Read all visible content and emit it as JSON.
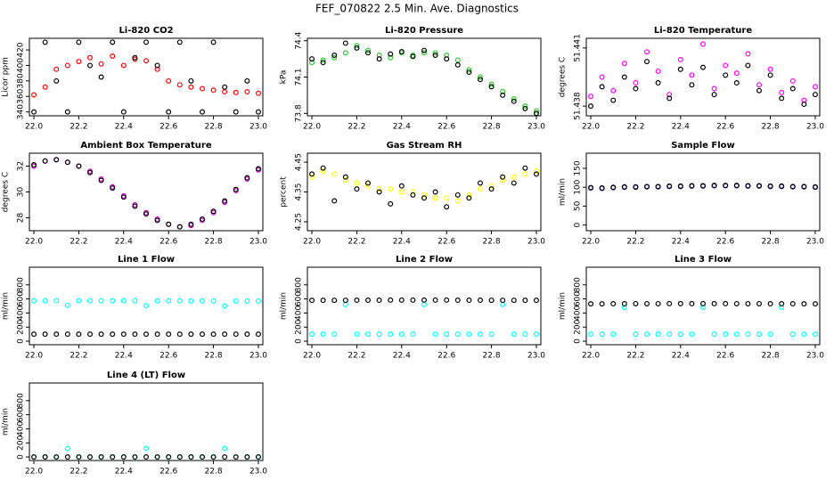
{
  "title": "FEF_070822  2.5 Min. Ave. Diagnostics",
  "chart_data": [
    {
      "type": "scatter",
      "title": "Li-820 CO2",
      "ylabel": "Licor ppm",
      "x": [
        22.0,
        22.05,
        22.1,
        22.15,
        22.2,
        22.25,
        22.3,
        22.35,
        22.4,
        22.45,
        22.5,
        22.55,
        22.6,
        22.65,
        22.7,
        22.75,
        22.8,
        22.85,
        22.9,
        22.95,
        23.0
      ],
      "xlim": [
        21.98,
        23.02
      ],
      "xticks": [
        {
          "value": 22,
          "label": "22.0"
        },
        22.2,
        22.4,
        22.6,
        22.8,
        {
          "value": 23,
          "label": "23.0"
        }
      ],
      "ylim": [
        335,
        435
      ],
      "yticks": [
        340,
        360,
        380,
        400,
        420
      ],
      "series": [
        {
          "color": "#ff0000",
          "values": [
            362,
            372,
            395,
            400,
            405,
            410,
            402,
            412,
            400,
            408,
            406,
            395,
            380,
            375,
            372,
            370,
            368,
            366,
            365,
            366,
            364
          ]
        },
        {
          "color": "#000000",
          "values": [
            340,
            430,
            380,
            340,
            430,
            400,
            385,
            430,
            340,
            410,
            430,
            400,
            340,
            430,
            380,
            340,
            430,
            372,
            340,
            380,
            340
          ]
        }
      ]
    },
    {
      "type": "scatter",
      "title": "Li-820 Pressure",
      "ylabel": "kPa",
      "x": [
        22.0,
        22.05,
        22.1,
        22.15,
        22.2,
        22.25,
        22.3,
        22.35,
        22.4,
        22.45,
        22.5,
        22.55,
        22.6,
        22.65,
        22.7,
        22.75,
        22.8,
        22.85,
        22.9,
        22.95,
        23.0
      ],
      "xlim": [
        21.98,
        23.02
      ],
      "xticks": [
        {
          "value": 22,
          "label": "22.0"
        },
        22.2,
        22.4,
        22.6,
        22.8,
        {
          "value": 23,
          "label": "23.0"
        }
      ],
      "ylim": [
        73.78,
        74.42
      ],
      "yticks": [
        73.8,
        74.1,
        74.4
      ],
      "series": [
        {
          "color": "#22cc22",
          "values": [
            74.22,
            74.24,
            74.26,
            74.3,
            74.36,
            74.32,
            74.28,
            74.26,
            74.3,
            74.28,
            74.3,
            74.3,
            74.28,
            74.24,
            74.16,
            74.1,
            74.04,
            73.98,
            73.92,
            73.86,
            73.82
          ]
        },
        {
          "color": "#000000",
          "values": [
            74.25,
            74.22,
            74.28,
            74.38,
            74.34,
            74.3,
            74.25,
            74.29,
            74.31,
            74.27,
            74.32,
            74.28,
            74.25,
            74.2,
            74.14,
            74.08,
            74.02,
            73.95,
            73.9,
            73.84,
            73.8
          ]
        }
      ]
    },
    {
      "type": "scatter",
      "title": "Li-820 Temperature",
      "ylabel": "degrees C",
      "x": [
        22.0,
        22.05,
        22.1,
        22.15,
        22.2,
        22.25,
        22.3,
        22.35,
        22.4,
        22.45,
        22.5,
        22.55,
        22.6,
        22.65,
        22.7,
        22.75,
        22.8,
        22.85,
        22.9,
        22.95,
        23.0
      ],
      "xlim": [
        21.98,
        23.02
      ],
      "xticks": [
        {
          "value": 22,
          "label": "22.0"
        },
        22.2,
        22.4,
        22.6,
        22.8,
        {
          "value": 23,
          "label": "23.0"
        }
      ],
      "ylim": [
        51.4375,
        51.4415
      ],
      "yticks": [
        51.438,
        51.441
      ],
      "series": [
        {
          "color": "#ff00ff",
          "values": [
            51.4385,
            51.4395,
            51.4388,
            51.4402,
            51.4392,
            51.4408,
            51.4398,
            51.4386,
            51.4404,
            51.4396,
            51.4412,
            51.4389,
            51.4401,
            51.4397,
            51.4407,
            51.4391,
            51.4399,
            51.4387,
            51.4393,
            51.4383,
            51.439
          ]
        },
        {
          "color": "#000000",
          "values": [
            51.438,
            51.439,
            51.4383,
            51.4395,
            51.4389,
            51.4403,
            51.4392,
            51.4384,
            51.4399,
            51.4391,
            51.44,
            51.4386,
            51.4396,
            51.4392,
            51.4401,
            51.4388,
            51.4396,
            51.4384,
            51.4389,
            51.4381,
            51.4386
          ]
        }
      ]
    },
    {
      "type": "scatter",
      "title": "Ambient Box Temperature",
      "ylabel": "degrees C",
      "x": [
        22.0,
        22.05,
        22.1,
        22.15,
        22.2,
        22.25,
        22.3,
        22.35,
        22.4,
        22.45,
        22.5,
        22.55,
        22.6,
        22.65,
        22.7,
        22.75,
        22.8,
        22.85,
        22.9,
        22.95,
        23.0
      ],
      "xlim": [
        21.98,
        23.02
      ],
      "xticks": [
        {
          "value": 22,
          "label": "22.0"
        },
        22.2,
        22.4,
        22.6,
        22.8,
        {
          "value": 23,
          "label": "23.0"
        }
      ],
      "ylim": [
        27,
        33
      ],
      "yticks": [
        28,
        30,
        32
      ],
      "series": [
        {
          "color": "#cc00cc",
          "values": [
            32,
            32.4,
            32.5,
            32.3,
            32,
            31.6,
            31,
            30.4,
            29.7,
            29,
            28.4,
            27.9,
            27.5,
            27.3,
            27.4,
            27.8,
            28.4,
            29.2,
            30.1,
            31,
            31.7
          ]
        },
        {
          "color": "#000000",
          "values": [
            32.1,
            32.4,
            32.5,
            32.3,
            32,
            31.5,
            30.9,
            30.3,
            29.6,
            28.9,
            28.3,
            27.8,
            27.5,
            27.3,
            27.5,
            27.9,
            28.5,
            29.3,
            30.2,
            31.1,
            31.8
          ]
        }
      ]
    },
    {
      "type": "scatter",
      "title": "Gas Stream RH",
      "ylabel": "percent",
      "x": [
        22.0,
        22.05,
        22.1,
        22.15,
        22.2,
        22.25,
        22.3,
        22.35,
        22.4,
        22.45,
        22.5,
        22.55,
        22.6,
        22.65,
        22.7,
        22.75,
        22.8,
        22.85,
        22.9,
        22.95,
        23.0
      ],
      "xlim": [
        21.98,
        23.02
      ],
      "xticks": [
        {
          "value": 22,
          "label": "22.0"
        },
        22.2,
        22.4,
        22.6,
        22.8,
        {
          "value": 23,
          "label": "23.0"
        }
      ],
      "ylim": [
        4.22,
        4.48
      ],
      "yticks": [
        4.25,
        4.35,
        4.45
      ],
      "series": [
        {
          "color": "#ffff00",
          "values": [
            4.4,
            4.42,
            4.41,
            4.39,
            4.38,
            4.37,
            4.36,
            4.36,
            4.35,
            4.35,
            4.34,
            4.33,
            4.33,
            4.32,
            4.34,
            4.36,
            4.37,
            4.39,
            4.4,
            4.41,
            4.42
          ]
        },
        {
          "color": "#000000",
          "values": [
            4.41,
            4.43,
            4.32,
            4.4,
            4.36,
            4.38,
            4.35,
            4.31,
            4.37,
            4.34,
            4.33,
            4.35,
            4.3,
            4.34,
            4.33,
            4.38,
            4.36,
            4.4,
            4.38,
            4.43,
            4.41
          ]
        }
      ]
    },
    {
      "type": "scatter",
      "title": "Sample Flow",
      "ylabel": "ml/min",
      "x": [
        22.0,
        22.05,
        22.1,
        22.15,
        22.2,
        22.25,
        22.3,
        22.35,
        22.4,
        22.45,
        22.5,
        22.55,
        22.6,
        22.65,
        22.7,
        22.75,
        22.8,
        22.85,
        22.9,
        22.95,
        23.0
      ],
      "xlim": [
        21.98,
        23.02
      ],
      "xticks": [
        {
          "value": 22,
          "label": "22.0"
        },
        22.2,
        22.4,
        22.6,
        22.8,
        {
          "value": 23,
          "label": "23.0"
        }
      ],
      "ylim": [
        -15,
        190
      ],
      "yticks": [
        0,
        50,
        100,
        150
      ],
      "series": [
        {
          "color": "#0000cc",
          "values": [
            98,
            97,
            99,
            100,
            100,
            101,
            101,
            102,
            102,
            103,
            103,
            104,
            104,
            104,
            103,
            103,
            102,
            102,
            101,
            101,
            100
          ]
        },
        {
          "color": "#000000",
          "values": [
            99,
            98,
            100,
            101,
            101,
            102,
            102,
            103,
            103,
            104,
            104,
            105,
            105,
            105,
            104,
            104,
            103,
            103,
            102,
            102,
            101
          ]
        }
      ]
    },
    {
      "type": "scatter",
      "title": "Line 1 Flow",
      "ylabel": "ml/min",
      "x": [
        22.0,
        22.05,
        22.1,
        22.15,
        22.2,
        22.25,
        22.3,
        22.35,
        22.4,
        22.45,
        22.5,
        22.55,
        22.6,
        22.65,
        22.7,
        22.75,
        22.8,
        22.85,
        22.9,
        22.95,
        23.0
      ],
      "xlim": [
        21.98,
        23.02
      ],
      "xticks": [
        {
          "value": 22,
          "label": "22.0"
        },
        22.2,
        22.4,
        22.6,
        22.8,
        {
          "value": 23,
          "label": "23.0"
        }
      ],
      "ylim": [
        -50,
        1050
      ],
      "yticks": [
        0,
        200,
        400,
        600,
        800
      ],
      "series": [
        {
          "color": "#00ffff",
          "values": [
            572,
            573,
            574,
            510,
            574,
            575,
            575,
            574,
            574,
            573,
            505,
            573,
            572,
            572,
            571,
            571,
            571,
            500,
            570,
            570,
            570
          ]
        },
        {
          "color": "#000000",
          "values": [
            100,
            100,
            100,
            100,
            100,
            100,
            100,
            100,
            100,
            100,
            100,
            100,
            100,
            100,
            100,
            100,
            100,
            100,
            100,
            100,
            100
          ]
        }
      ]
    },
    {
      "type": "scatter",
      "title": "Line 2 Flow",
      "ylabel": "ml/min",
      "x": [
        22.0,
        22.05,
        22.1,
        22.15,
        22.2,
        22.25,
        22.3,
        22.35,
        22.4,
        22.45,
        22.5,
        22.55,
        22.6,
        22.65,
        22.7,
        22.75,
        22.8,
        22.85,
        22.9,
        22.95,
        23.0
      ],
      "xlim": [
        21.98,
        23.02
      ],
      "xticks": [
        {
          "value": 22,
          "label": "22.0"
        },
        22.2,
        22.4,
        22.6,
        22.8,
        {
          "value": 23,
          "label": "23.0"
        }
      ],
      "ylim": [
        -50,
        1050
      ],
      "yticks": [
        0,
        200,
        400,
        600,
        800
      ],
      "series": [
        {
          "color": "#00ffff",
          "values": [
            100,
            100,
            100,
            520,
            100,
            100,
            100,
            100,
            100,
            100,
            520,
            100,
            100,
            100,
            100,
            100,
            100,
            520,
            100,
            100,
            100
          ]
        },
        {
          "color": "#000000",
          "values": [
            580,
            580,
            581,
            581,
            582,
            582,
            582,
            583,
            583,
            583,
            583,
            583,
            583,
            582,
            582,
            582,
            581,
            581,
            581,
            580,
            580
          ]
        }
      ]
    },
    {
      "type": "scatter",
      "title": "Line 3 Flow",
      "ylabel": "ml/min",
      "x": [
        22.0,
        22.05,
        22.1,
        22.15,
        22.2,
        22.25,
        22.3,
        22.35,
        22.4,
        22.45,
        22.5,
        22.55,
        22.6,
        22.65,
        22.7,
        22.75,
        22.8,
        22.85,
        22.9,
        22.95,
        23.0
      ],
      "xlim": [
        21.98,
        23.02
      ],
      "xticks": [
        {
          "value": 22,
          "label": "22.0"
        },
        22.2,
        22.4,
        22.6,
        22.8,
        {
          "value": 23,
          "label": "23.0"
        }
      ],
      "ylim": [
        -50,
        1050
      ],
      "yticks": [
        0,
        200,
        400,
        600,
        800
      ],
      "series": [
        {
          "color": "#00ffff",
          "values": [
            100,
            100,
            100,
            480,
            100,
            100,
            100,
            100,
            100,
            100,
            480,
            100,
            100,
            100,
            100,
            100,
            100,
            480,
            100,
            100,
            100
          ]
        },
        {
          "color": "#000000",
          "values": [
            530,
            530,
            531,
            531,
            532,
            532,
            532,
            533,
            533,
            533,
            533,
            533,
            533,
            532,
            532,
            532,
            531,
            531,
            531,
            530,
            530
          ]
        }
      ]
    },
    {
      "type": "scatter",
      "title": "Line 4 (LT) Flow",
      "ylabel": "ml/min",
      "x": [
        22.0,
        22.05,
        22.1,
        22.15,
        22.2,
        22.25,
        22.3,
        22.35,
        22.4,
        22.45,
        22.5,
        22.55,
        22.6,
        22.65,
        22.7,
        22.75,
        22.8,
        22.85,
        22.9,
        22.95,
        23.0
      ],
      "xlim": [
        21.98,
        23.02
      ],
      "xticks": [
        {
          "value": 22,
          "label": "22.0"
        },
        22.2,
        22.4,
        22.6,
        22.8,
        {
          "value": 23,
          "label": "23.0"
        }
      ],
      "ylim": [
        -50,
        1050
      ],
      "yticks": [
        0,
        200,
        400,
        600,
        800
      ],
      "series": [
        {
          "color": "#00ffff",
          "values": [
            0,
            0,
            0,
            120,
            0,
            0,
            0,
            0,
            0,
            0,
            120,
            0,
            0,
            0,
            0,
            0,
            0,
            120,
            0,
            0,
            0
          ]
        },
        {
          "color": "#000000",
          "values": [
            0,
            0,
            0,
            0,
            0,
            0,
            0,
            0,
            0,
            0,
            0,
            0,
            0,
            0,
            0,
            0,
            0,
            0,
            0,
            0,
            0
          ]
        }
      ]
    }
  ]
}
